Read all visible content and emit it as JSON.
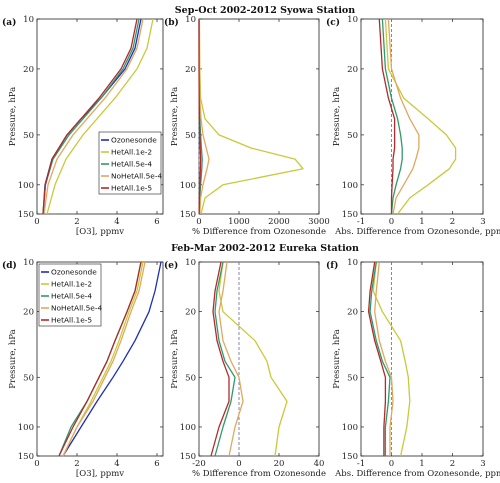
{
  "figure": {
    "row_titles": [
      "Sep-Oct 2002-2012 Syowa Station",
      "Feb-Mar 2002-2012 Eureka Station"
    ],
    "y_label": "Pressure, hPa",
    "y_ticks": [
      10,
      20,
      50,
      100,
      150
    ]
  },
  "chart_data": [
    {
      "panel_label": "(a)",
      "type": "line",
      "xlabel": "[O$_3$], ppmv",
      "xlabel_display": "[O3], ppmv",
      "xlim": [
        0,
        6.3
      ],
      "xticks": [
        0,
        2,
        4,
        6
      ],
      "xtick_labels": [
        "0",
        "2",
        "4",
        "6"
      ],
      "ylim": [
        150,
        10
      ],
      "yscale": "log",
      "legend": {
        "placement": "center-right",
        "entries": [
          "Ozonesonde",
          "HetAll.1e-2",
          "HetAll.5e-4",
          "NoHetAll.5e-4",
          "HetAll.1e-5"
        ]
      },
      "series": [
        {
          "name": "Ozonesonde",
          "color": "#1f2fb8",
          "p": [
            10,
            15,
            20,
            30,
            40,
            50,
            70,
            100,
            150
          ],
          "x": [
            5.2,
            4.9,
            4.4,
            3.2,
            2.2,
            1.5,
            0.75,
            0.4,
            0.3
          ]
        },
        {
          "name": "HetAll.1e-2",
          "color": "#c9c93a",
          "p": [
            10,
            15,
            20,
            30,
            40,
            50,
            70,
            100,
            150
          ],
          "x": [
            5.8,
            5.5,
            5.0,
            3.9,
            3.0,
            2.3,
            1.45,
            0.9,
            0.5
          ]
        },
        {
          "name": "HetAll.5e-4",
          "color": "#2f9a6a",
          "p": [
            10,
            15,
            20,
            30,
            40,
            50,
            70,
            100,
            150
          ],
          "x": [
            5.1,
            4.8,
            4.3,
            3.2,
            2.3,
            1.6,
            0.8,
            0.42,
            0.3
          ]
        },
        {
          "name": "NoHetAll.5e-4",
          "color": "#e0a85e",
          "p": [
            10,
            15,
            20,
            30,
            40,
            50,
            70,
            100,
            150
          ],
          "x": [
            5.3,
            5.0,
            4.5,
            3.4,
            2.5,
            1.8,
            1.0,
            0.55,
            0.35
          ]
        },
        {
          "name": "HetAll.1e-5",
          "color": "#b22a2a",
          "p": [
            10,
            15,
            20,
            30,
            40,
            50,
            70,
            100,
            150
          ],
          "x": [
            5.0,
            4.7,
            4.2,
            3.1,
            2.2,
            1.5,
            0.75,
            0.42,
            0.3
          ]
        }
      ]
    },
    {
      "panel_label": "(b)",
      "type": "line",
      "xlabel": "% Difference from Ozonesonde",
      "xlim": [
        0,
        3000
      ],
      "xticks": [
        0,
        1000,
        2000,
        3000
      ],
      "xtick_labels": [
        "0",
        "1000",
        "2000",
        "3000"
      ],
      "ylim": [
        150,
        10
      ],
      "yscale": "log",
      "dashed_zero": true,
      "series": [
        {
          "name": "HetAll.1e-2",
          "color": "#c9c93a",
          "p": [
            10,
            20,
            30,
            40,
            50,
            60,
            70,
            80,
            100,
            120,
            150
          ],
          "x": [
            10,
            20,
            40,
            150,
            500,
            1300,
            2400,
            2600,
            600,
            150,
            50
          ]
        },
        {
          "name": "HetAll.5e-4",
          "color": "#2f9a6a",
          "p": [
            10,
            20,
            30,
            40,
            50,
            60,
            70,
            80,
            100,
            120,
            150
          ],
          "x": [
            0,
            5,
            10,
            20,
            40,
            60,
            80,
            70,
            40,
            20,
            10
          ]
        },
        {
          "name": "NoHetAll.5e-4",
          "color": "#e0a85e",
          "p": [
            10,
            20,
            30,
            40,
            50,
            60,
            70,
            80,
            100,
            120,
            150
          ],
          "x": [
            5,
            10,
            20,
            50,
            100,
            180,
            250,
            200,
            100,
            40,
            20
          ]
        },
        {
          "name": "HetAll.1e-5",
          "color": "#b22a2a",
          "p": [
            10,
            20,
            30,
            40,
            50,
            60,
            70,
            80,
            100,
            120,
            150
          ],
          "x": [
            0,
            0,
            5,
            10,
            20,
            30,
            40,
            35,
            20,
            10,
            5
          ]
        }
      ]
    },
    {
      "panel_label": "(c)",
      "type": "line",
      "xlabel": "Abs. Difference from Ozonesonde, ppmv",
      "xlim": [
        -1,
        3
      ],
      "xticks": [
        -1,
        0,
        1,
        2,
        3
      ],
      "xtick_labels": [
        "-1",
        "0",
        "1",
        "2",
        "3"
      ],
      "ylim": [
        150,
        10
      ],
      "yscale": "log",
      "dashed_zero": true,
      "series": [
        {
          "name": "HetAll.1e-2",
          "color": "#c9c93a",
          "p": [
            10,
            20,
            30,
            40,
            50,
            60,
            70,
            80,
            100,
            120,
            150
          ],
          "x": [
            -0.2,
            -0.1,
            0.4,
            1.2,
            1.8,
            2.1,
            2.1,
            1.9,
            1.2,
            0.6,
            0.2
          ]
        },
        {
          "name": "HetAll.5e-4",
          "color": "#2f9a6a",
          "p": [
            10,
            20,
            30,
            40,
            50,
            60,
            70,
            80,
            100,
            120,
            150
          ],
          "x": [
            -0.3,
            -0.2,
            0.0,
            0.2,
            0.3,
            0.35,
            0.35,
            0.3,
            0.15,
            0.05,
            0.0
          ]
        },
        {
          "name": "NoHetAll.5e-4",
          "color": "#e0a85e",
          "p": [
            10,
            20,
            30,
            40,
            50,
            60,
            70,
            80,
            100,
            120,
            150
          ],
          "x": [
            -0.1,
            0.0,
            0.3,
            0.6,
            0.9,
            0.9,
            0.8,
            0.7,
            0.4,
            0.15,
            0.05
          ]
        },
        {
          "name": "HetAll.1e-5",
          "color": "#b22a2a",
          "p": [
            10,
            20,
            30,
            40,
            50,
            60,
            70,
            80,
            100,
            120,
            150
          ],
          "x": [
            -0.4,
            -0.3,
            -0.1,
            0.1,
            0.1,
            0.1,
            0.05,
            0.05,
            0.02,
            0.0,
            0.0
          ]
        }
      ]
    },
    {
      "panel_label": "(d)",
      "type": "line",
      "xlabel": "[O$_3$], ppmv",
      "xlabel_display": "[O3], ppmv",
      "xlim": [
        0,
        6.3
      ],
      "xticks": [
        0,
        2,
        4,
        6
      ],
      "xtick_labels": [
        "0",
        "2",
        "4",
        "6"
      ],
      "ylim": [
        150,
        10
      ],
      "yscale": "log",
      "legend": {
        "placement": "top-left",
        "entries": [
          "Ozonesonde",
          "HetAll.1e-2",
          "HetAll.5e-4",
          "NoHetAll.5e-4",
          "HetAll.1e-5"
        ]
      },
      "series": [
        {
          "name": "Ozonesonde",
          "color": "#1f2fb8",
          "p": [
            10,
            15,
            20,
            30,
            40,
            50,
            70,
            100,
            150
          ],
          "x": [
            6.2,
            5.9,
            5.6,
            4.9,
            4.3,
            3.8,
            3.0,
            2.2,
            1.3
          ]
        },
        {
          "name": "HetAll.1e-2",
          "color": "#c9c93a",
          "p": [
            10,
            15,
            20,
            30,
            40,
            50,
            70,
            100,
            150
          ],
          "x": [
            5.3,
            5.0,
            4.6,
            4.1,
            3.7,
            3.3,
            2.7,
            2.0,
            1.3
          ]
        },
        {
          "name": "HetAll.5e-4",
          "color": "#2f9a6a",
          "p": [
            10,
            15,
            20,
            30,
            40,
            50,
            70,
            100,
            150
          ],
          "x": [
            5.2,
            4.9,
            4.5,
            3.9,
            3.5,
            3.1,
            2.5,
            1.7,
            1.1
          ]
        },
        {
          "name": "NoHetAll.5e-4",
          "color": "#e0a85e",
          "p": [
            10,
            15,
            20,
            30,
            40,
            50,
            70,
            100,
            150
          ],
          "x": [
            5.4,
            5.1,
            4.7,
            4.2,
            3.8,
            3.4,
            2.8,
            2.0,
            1.3
          ]
        },
        {
          "name": "HetAll.1e-5",
          "color": "#b22a2a",
          "p": [
            10,
            15,
            20,
            30,
            40,
            50,
            70,
            100,
            150
          ],
          "x": [
            5.2,
            4.9,
            4.5,
            3.9,
            3.5,
            3.1,
            2.5,
            1.8,
            1.1
          ]
        }
      ]
    },
    {
      "panel_label": "(e)",
      "type": "line",
      "xlabel": "% Difference from Ozonesonde",
      "xlim": [
        -20,
        40
      ],
      "xticks": [
        -20,
        0,
        20,
        40
      ],
      "xtick_labels": [
        "-20",
        "0",
        "20",
        "40"
      ],
      "ylim": [
        150,
        10
      ],
      "yscale": "log",
      "dashed_zero": true,
      "series": [
        {
          "name": "HetAll.1e-2",
          "color": "#c9c93a",
          "p": [
            10,
            15,
            20,
            30,
            40,
            50,
            70,
            100,
            150
          ],
          "x": [
            -8,
            -10,
            -8,
            8,
            14,
            16,
            24,
            20,
            18
          ]
        },
        {
          "name": "HetAll.5e-4",
          "color": "#2f9a6a",
          "p": [
            10,
            15,
            20,
            30,
            40,
            50,
            70,
            100,
            150
          ],
          "x": [
            -8,
            -11,
            -12,
            -10,
            -7,
            -2,
            -4,
            -8,
            -12
          ]
        },
        {
          "name": "NoHetAll.5e-4",
          "color": "#e0a85e",
          "p": [
            10,
            15,
            20,
            30,
            40,
            50,
            70,
            100,
            150
          ],
          "x": [
            -6,
            -8,
            -10,
            -8,
            -4,
            0,
            2,
            -2,
            -5
          ]
        },
        {
          "name": "HetAll.1e-5",
          "color": "#b22a2a",
          "p": [
            10,
            15,
            20,
            30,
            40,
            50,
            70,
            100,
            150
          ],
          "x": [
            -9,
            -12,
            -13,
            -11,
            -8,
            -5,
            -5,
            -10,
            -14
          ]
        }
      ]
    },
    {
      "panel_label": "(f)",
      "type": "line",
      "xlabel": "Abs. Difference from Ozonesonde, ppmv",
      "xlim": [
        -1,
        3
      ],
      "xticks": [
        -1,
        0,
        1,
        2,
        3
      ],
      "xtick_labels": [
        "-1",
        "0",
        "1",
        "2",
        "3"
      ],
      "ylim": [
        150,
        10
      ],
      "yscale": "log",
      "dashed_zero": true,
      "series": [
        {
          "name": "HetAll.1e-2",
          "color": "#c9c93a",
          "p": [
            10,
            15,
            20,
            30,
            40,
            50,
            70,
            100,
            150
          ],
          "x": [
            -0.5,
            -0.6,
            -0.3,
            0.3,
            0.45,
            0.55,
            0.6,
            0.5,
            0.3
          ]
        },
        {
          "name": "HetAll.5e-4",
          "color": "#2f9a6a",
          "p": [
            10,
            15,
            20,
            30,
            40,
            50,
            70,
            100,
            150
          ],
          "x": [
            -0.5,
            -0.65,
            -0.7,
            -0.5,
            -0.3,
            -0.05,
            -0.1,
            -0.2,
            -0.2
          ]
        },
        {
          "name": "NoHetAll.5e-4",
          "color": "#e0a85e",
          "p": [
            10,
            15,
            20,
            30,
            40,
            50,
            70,
            100,
            150
          ],
          "x": [
            -0.4,
            -0.5,
            -0.55,
            -0.4,
            -0.2,
            0.0,
            0.05,
            -0.05,
            -0.05
          ]
        },
        {
          "name": "HetAll.1e-5",
          "color": "#b22a2a",
          "p": [
            10,
            15,
            20,
            30,
            40,
            50,
            70,
            100,
            150
          ],
          "x": [
            -0.55,
            -0.7,
            -0.75,
            -0.55,
            -0.35,
            -0.2,
            -0.2,
            -0.25,
            -0.25
          ]
        }
      ]
    }
  ]
}
